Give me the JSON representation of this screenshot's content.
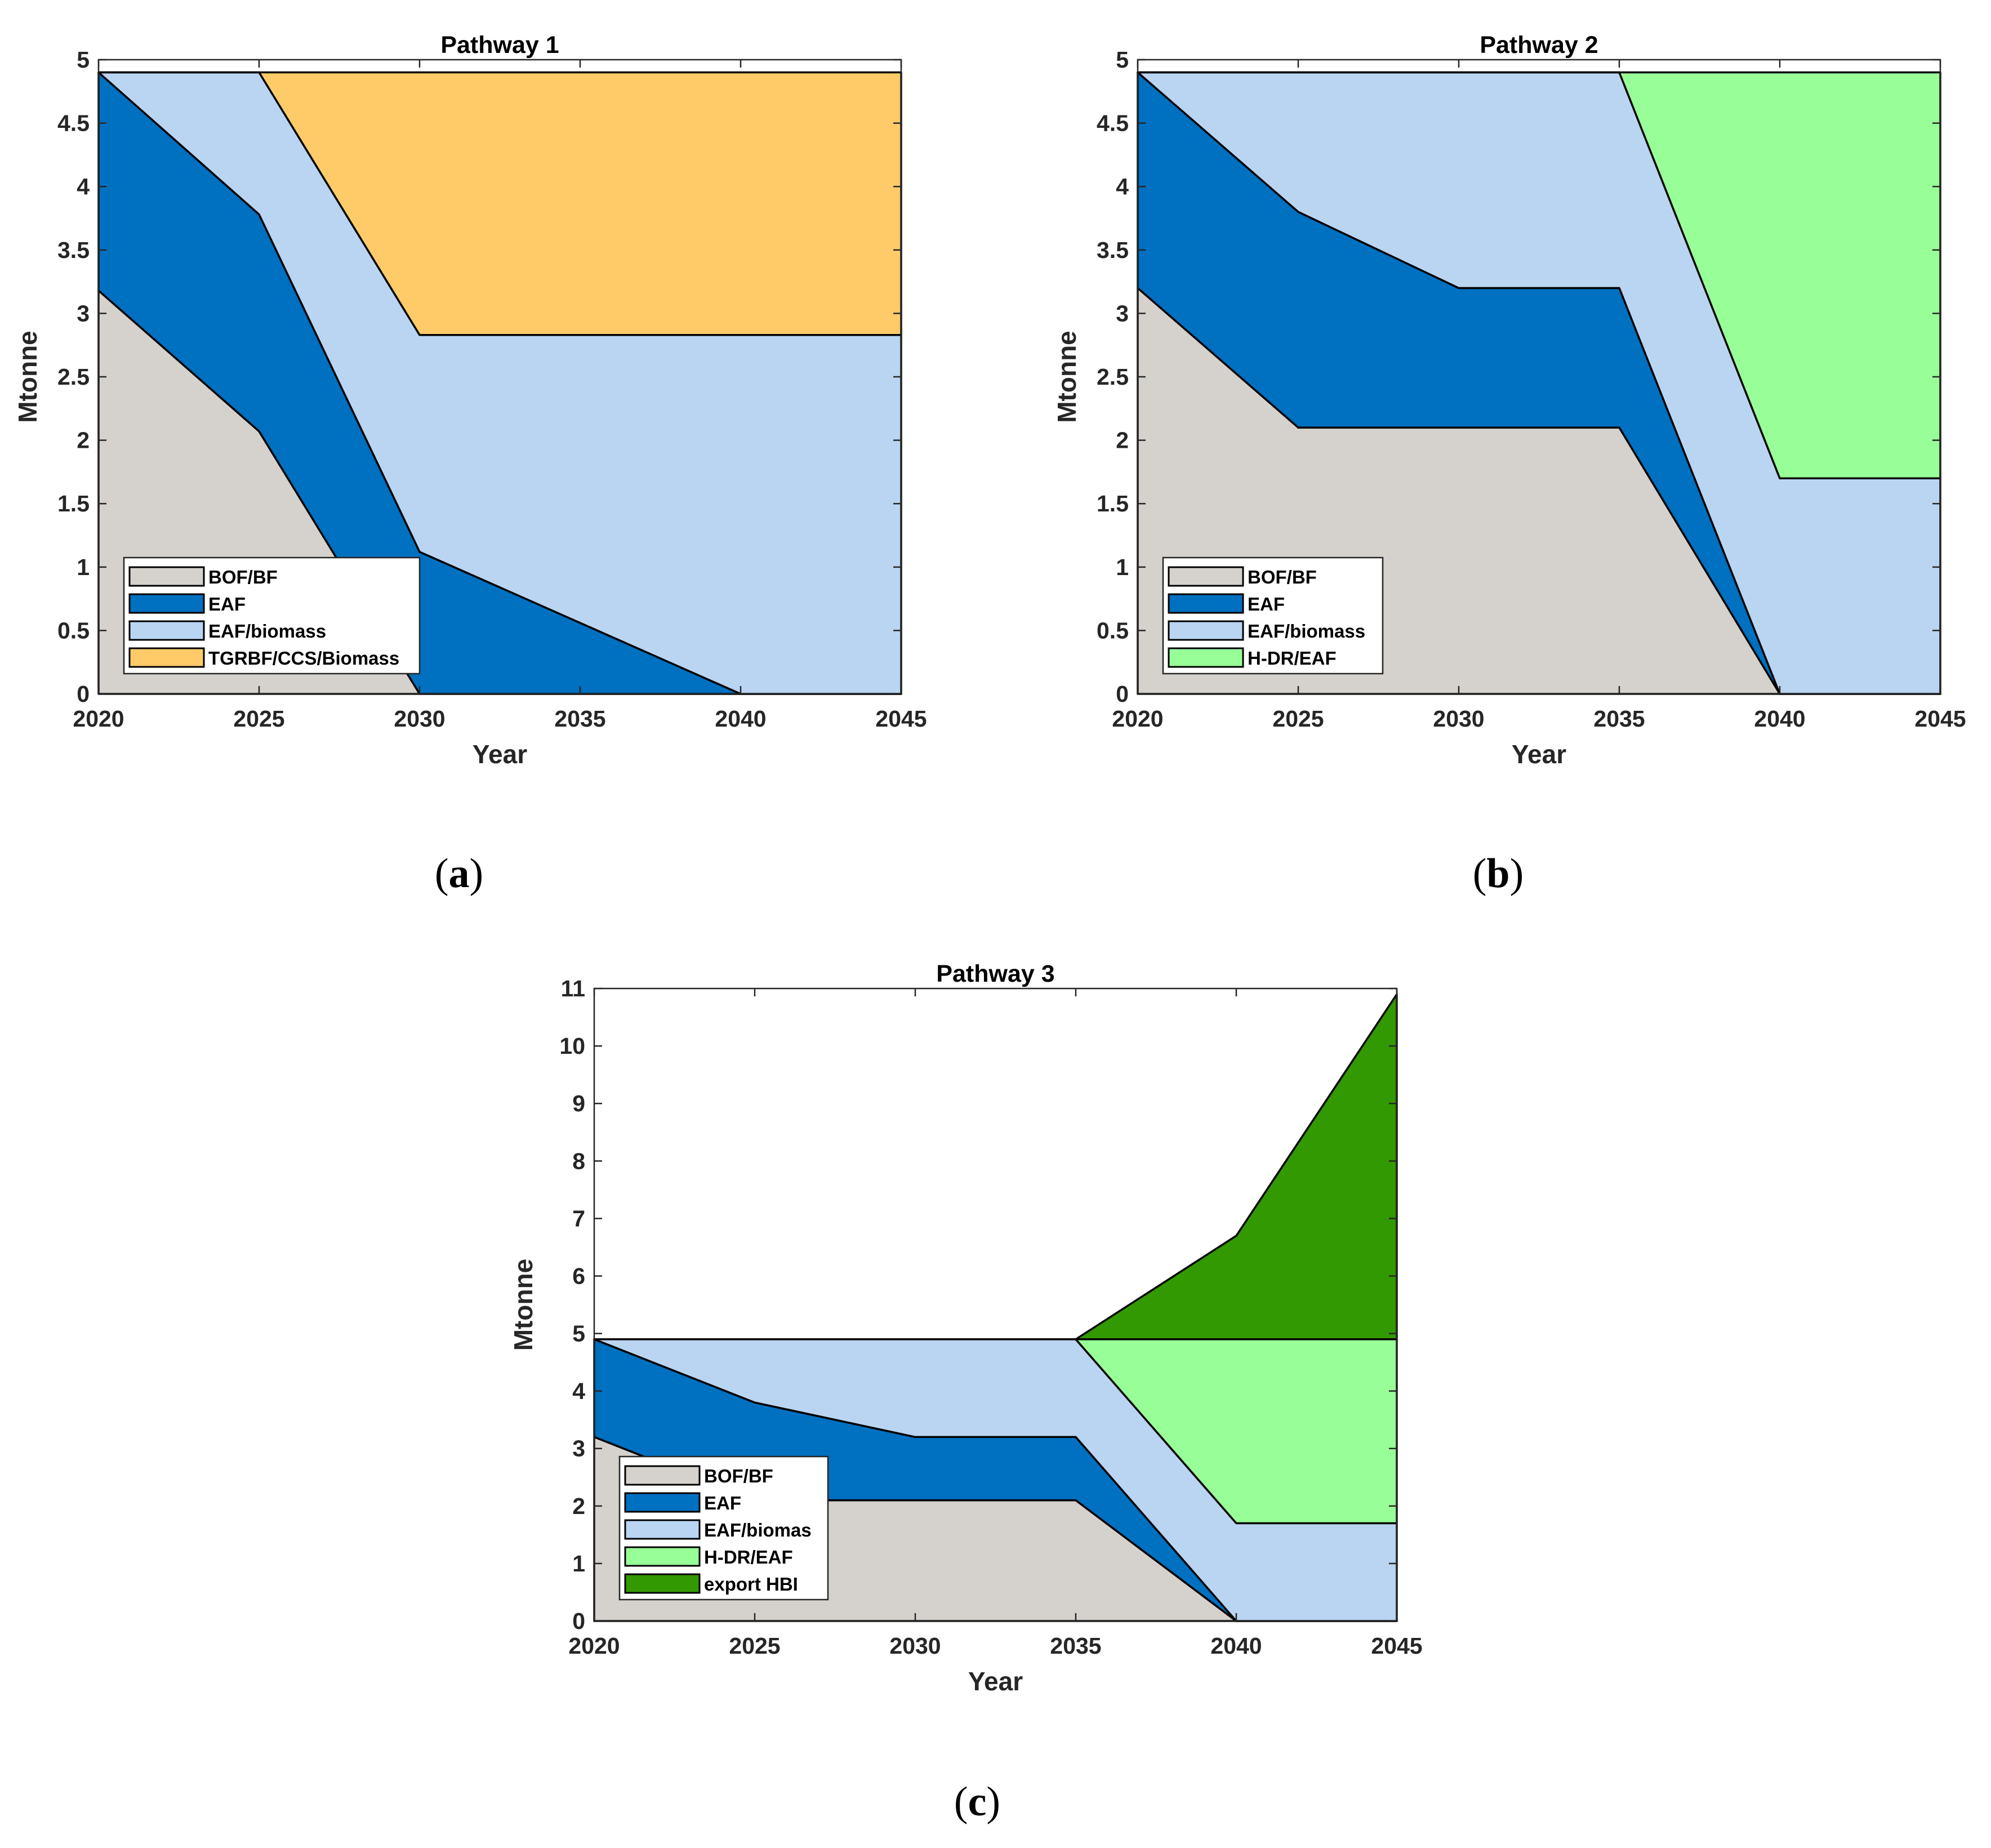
{
  "colors": {
    "BOF/BF": "#d5d1cc",
    "EAF": "#0070c0",
    "EAF/biomass": "#bad5f2",
    "TGRBF/CCS/Biomass": "#ffcb69",
    "H-DR/EAF": "#98ff98",
    "export HBI": "#339900"
  },
  "chart_data": [
    {
      "type": "area",
      "stacked": true,
      "title": "Pathway 1",
      "caption": "a",
      "xlabel": "Year",
      "ylabel": "Mtonne",
      "x": [
        2020,
        2025,
        2030,
        2035,
        2040,
        2045
      ],
      "xlim": [
        2020,
        2045
      ],
      "ylim": [
        0,
        5
      ],
      "yticks": [
        0,
        0.5,
        1,
        1.5,
        2,
        2.5,
        3,
        3.5,
        4,
        4.5,
        5
      ],
      "ytick_labels": [
        "0",
        "0.5",
        "1",
        "1.5",
        "2",
        "2.5",
        "3",
        "3.5",
        "4",
        "4.5",
        "5"
      ],
      "legend_position": "bottom-left",
      "series": [
        {
          "name": "BOF/BF",
          "values": [
            3.18,
            2.07,
            0,
            0,
            0,
            0
          ]
        },
        {
          "name": "EAF",
          "values": [
            1.72,
            1.71,
            1.12,
            0.56,
            0,
            0
          ]
        },
        {
          "name": "EAF/biomass",
          "values": [
            0,
            1.12,
            1.71,
            2.27,
            2.83,
            2.83
          ]
        },
        {
          "name": "TGRBF/CCS/Biomass",
          "values": [
            0,
            0,
            2.07,
            2.07,
            2.07,
            2.07
          ]
        }
      ]
    },
    {
      "type": "area",
      "stacked": true,
      "title": "Pathway 2",
      "caption": "b",
      "xlabel": "Year",
      "ylabel": "Mtonne",
      "x": [
        2020,
        2025,
        2030,
        2035,
        2040,
        2045
      ],
      "xlim": [
        2020,
        2045
      ],
      "ylim": [
        0,
        5
      ],
      "yticks": [
        0,
        0.5,
        1,
        1.5,
        2,
        2.5,
        3,
        3.5,
        4,
        4.5,
        5
      ],
      "ytick_labels": [
        "0",
        "0.5",
        "1",
        "1.5",
        "2",
        "2.5",
        "3",
        "3.5",
        "4",
        "4.5",
        "5"
      ],
      "legend_position": "bottom-left",
      "series": [
        {
          "name": "BOF/BF",
          "values": [
            3.2,
            2.1,
            2.1,
            2.1,
            0,
            0
          ]
        },
        {
          "name": "EAF",
          "values": [
            1.7,
            1.7,
            1.1,
            1.1,
            0,
            0
          ]
        },
        {
          "name": "EAF/biomass",
          "values": [
            0,
            1.1,
            1.7,
            1.7,
            1.7,
            1.7
          ]
        },
        {
          "name": "H-DR/EAF",
          "values": [
            0,
            0,
            0,
            0,
            3.2,
            3.2
          ]
        }
      ]
    },
    {
      "type": "area",
      "stacked": true,
      "title": "Pathway 3",
      "caption": "c",
      "xlabel": "Year",
      "ylabel": "Mtonne",
      "x": [
        2020,
        2025,
        2030,
        2035,
        2040,
        2045
      ],
      "xlim": [
        2020,
        2045
      ],
      "ylim": [
        0,
        11
      ],
      "yticks": [
        0,
        1,
        2,
        3,
        4,
        5,
        6,
        7,
        8,
        9,
        10,
        11
      ],
      "ytick_labels": [
        "0",
        "1",
        "2",
        "3",
        "4",
        "5",
        "6",
        "7",
        "8",
        "9",
        "10",
        "11"
      ],
      "legend_position": "bottom-left",
      "series": [
        {
          "name": "BOF/BF",
          "values": [
            3.2,
            2.1,
            2.1,
            2.1,
            0,
            0
          ]
        },
        {
          "name": "EAF",
          "values": [
            1.7,
            1.7,
            1.1,
            1.1,
            0,
            0
          ]
        },
        {
          "name": "EAF/biomas",
          "color_key": "EAF/biomass",
          "values": [
            0,
            1.1,
            1.7,
            1.7,
            1.7,
            1.7
          ]
        },
        {
          "name": "H-DR/EAF",
          "values": [
            0,
            0,
            0,
            0,
            3.2,
            3.2
          ]
        },
        {
          "name": "export HBI",
          "values": [
            0,
            0,
            0,
            0,
            1.8,
            6.0
          ]
        }
      ]
    }
  ]
}
